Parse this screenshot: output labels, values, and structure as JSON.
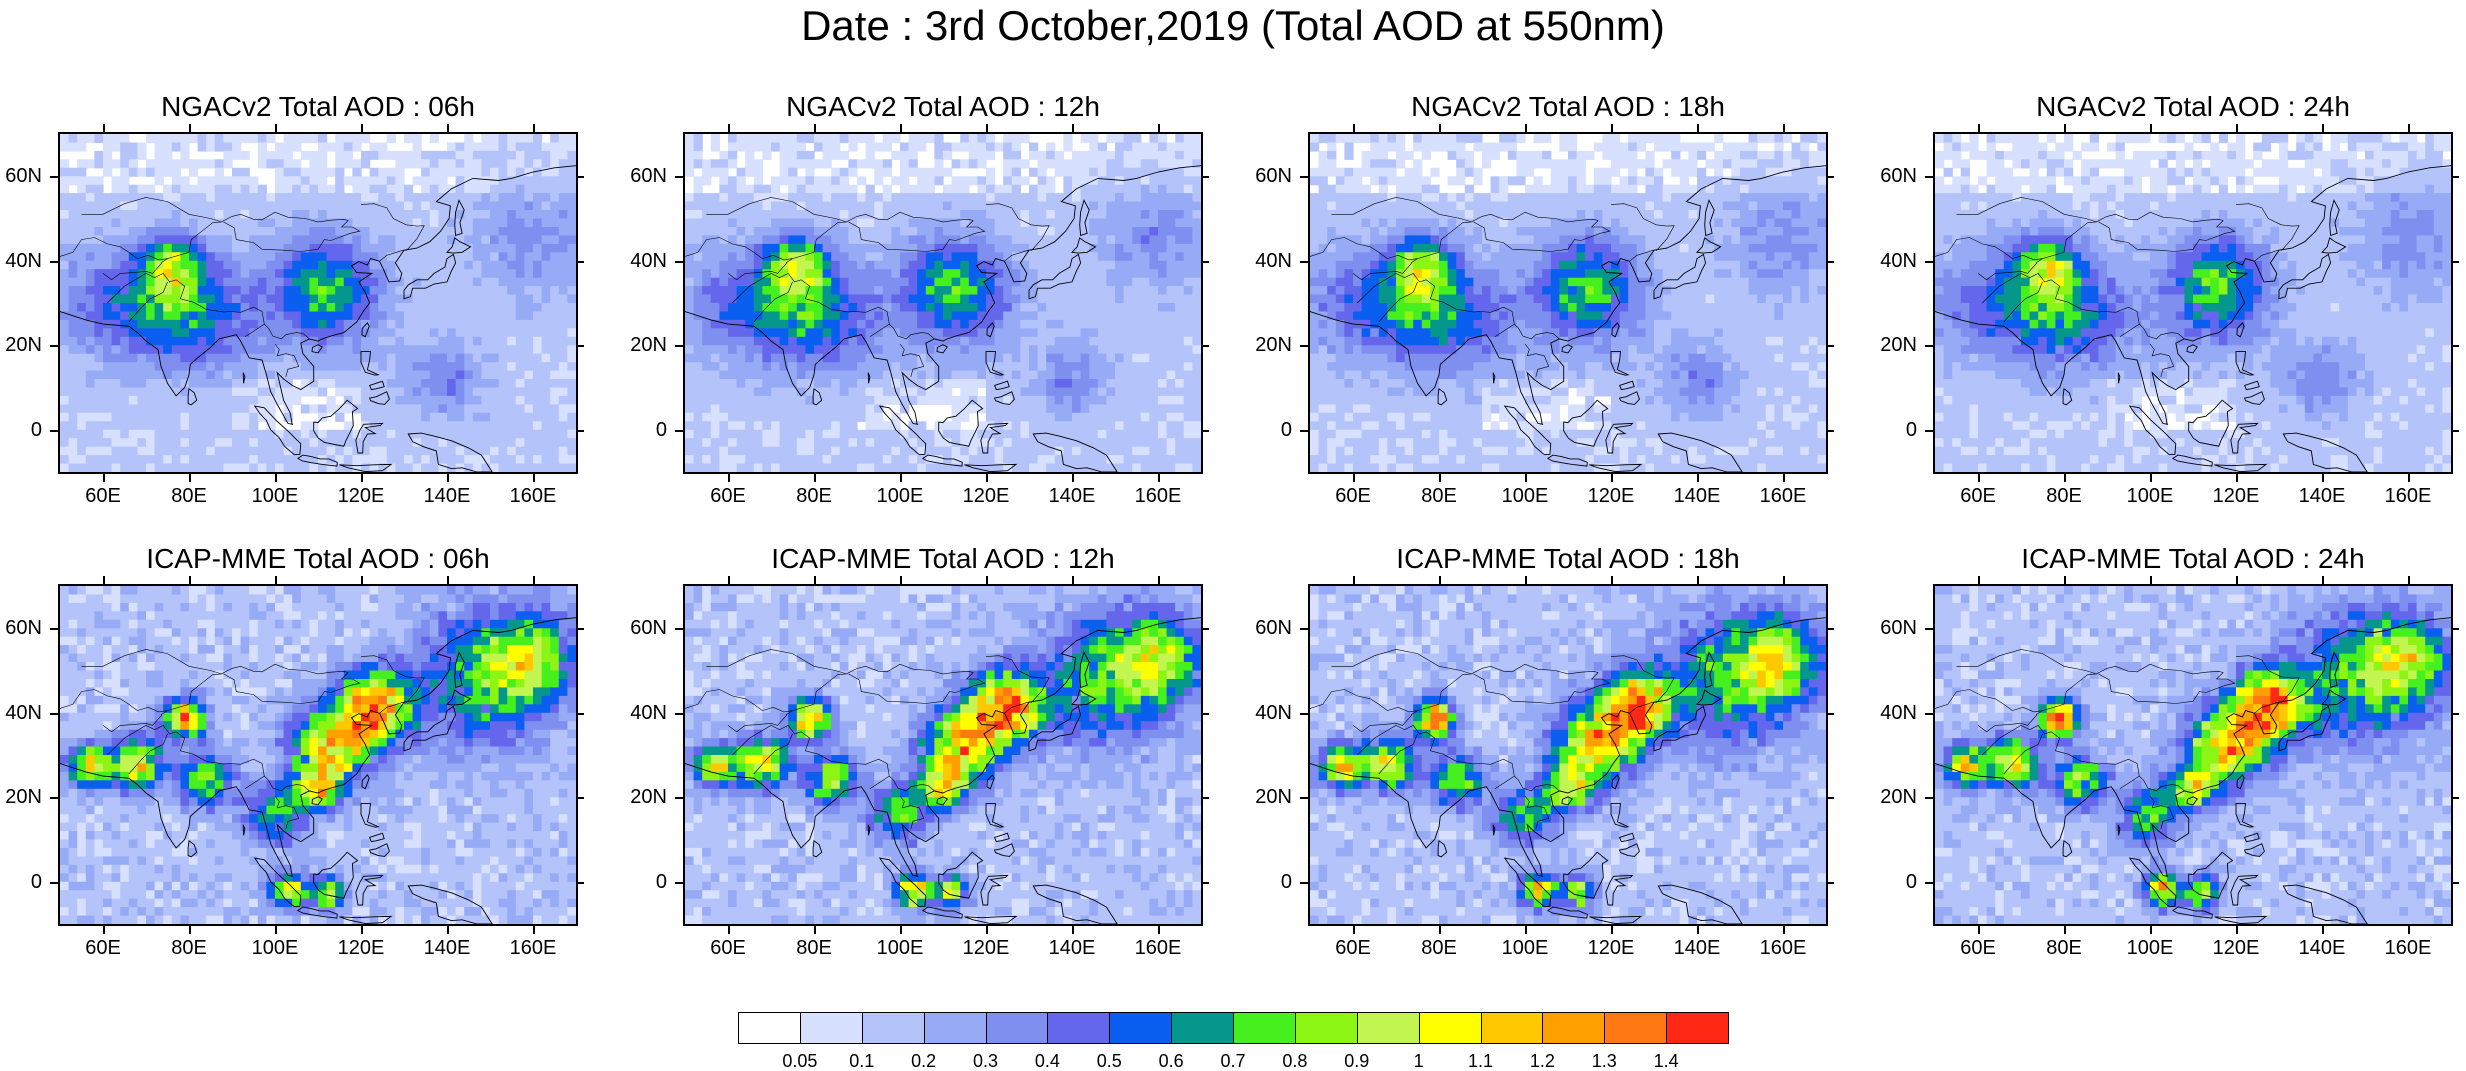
{
  "title": "Date : 3rd October,2019 (Total AOD at 550nm)",
  "panels": [
    {
      "title": "NGACv2 Total AOD : 06h",
      "model": "ngac"
    },
    {
      "title": "NGACv2 Total AOD : 12h",
      "model": "ngac"
    },
    {
      "title": "NGACv2 Total AOD : 18h",
      "model": "ngac"
    },
    {
      "title": "NGACv2 Total AOD : 24h",
      "model": "ngac"
    },
    {
      "title": "ICAP-MME Total AOD : 06h",
      "model": "icap"
    },
    {
      "title": "ICAP-MME Total AOD : 12h",
      "model": "icap"
    },
    {
      "title": "ICAP-MME Total AOD : 18h",
      "model": "icap"
    },
    {
      "title": "ICAP-MME Total AOD : 24h",
      "model": "icap"
    }
  ],
  "lat_labels": [
    "60N",
    "40N",
    "20N",
    "0"
  ],
  "lat_values": [
    60,
    40,
    20,
    0
  ],
  "lon_labels": [
    "60E",
    "80E",
    "100E",
    "120E",
    "140E",
    "160E"
  ],
  "lon_values": [
    60,
    80,
    100,
    120,
    140,
    160
  ],
  "domain": {
    "lon_min": 50,
    "lon_max": 170,
    "lat_min": -10,
    "lat_max": 70
  },
  "colorbar": {
    "labels": [
      "0.05",
      "0.1",
      "0.2",
      "0.3",
      "0.4",
      "0.5",
      "0.6",
      "0.7",
      "0.8",
      "0.9",
      "1",
      "1.1",
      "1.2",
      "1.3",
      "1.4"
    ],
    "colors": [
      "#ffffff",
      "#d7e0ff",
      "#b4c3fa",
      "#96aaf5",
      "#7f8ff0",
      "#6466eb",
      "#0a5ff0",
      "#05968c",
      "#46f01e",
      "#8cf514",
      "#c3f550",
      "#ffff00",
      "#ffc800",
      "#ffa000",
      "#ff7814",
      "#ff2814"
    ]
  }
}
